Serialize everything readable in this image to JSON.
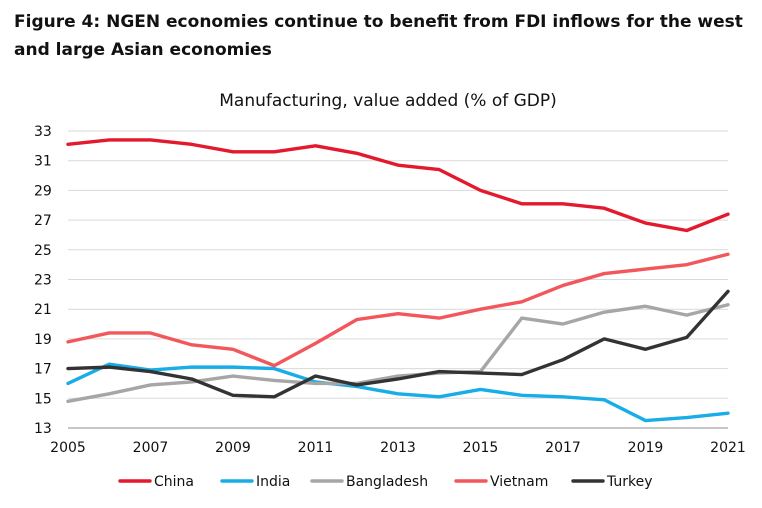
{
  "figure": {
    "title": "Figure 4: NGEN economies continue to benefit from FDI inflows for the west and large Asian economies"
  },
  "chart_data": {
    "type": "line",
    "title": "Manufacturing, value added (% of GDP)",
    "xlabel": "",
    "ylabel": "",
    "x": [
      2005,
      2006,
      2007,
      2008,
      2009,
      2010,
      2011,
      2012,
      2013,
      2014,
      2015,
      2016,
      2017,
      2018,
      2019,
      2020,
      2021
    ],
    "x_ticks": [
      "2005",
      "2007",
      "2009",
      "2011",
      "2013",
      "2015",
      "2017",
      "2019",
      "2021"
    ],
    "y_ticks": [
      "33",
      "31",
      "29",
      "27",
      "25",
      "23",
      "21",
      "19",
      "17",
      "15",
      "13"
    ],
    "ylim": [
      13,
      33
    ],
    "grid": "horizontal",
    "legend_position": "bottom",
    "series": [
      {
        "name": "China",
        "color": "#e3192e",
        "values": [
          32.1,
          32.4,
          32.4,
          32.1,
          31.6,
          31.6,
          32.0,
          31.5,
          30.7,
          30.4,
          29.0,
          28.1,
          28.1,
          27.8,
          26.8,
          26.3,
          27.4
        ]
      },
      {
        "name": "India",
        "color": "#18ade6",
        "values": [
          16.0,
          17.3,
          16.9,
          17.1,
          17.1,
          17.0,
          16.1,
          15.8,
          15.3,
          15.1,
          15.6,
          15.2,
          15.1,
          14.9,
          13.5,
          13.7,
          14.0
        ]
      },
      {
        "name": "Bangladesh",
        "color": "#a6a6a6",
        "values": [
          14.8,
          15.3,
          15.9,
          16.1,
          16.5,
          16.2,
          16.0,
          16.0,
          16.5,
          16.7,
          16.8,
          20.4,
          20.0,
          20.8,
          21.2,
          20.6,
          21.3
        ]
      },
      {
        "name": "Vietnam",
        "color": "#f2575c",
        "values": [
          18.8,
          19.4,
          19.4,
          18.6,
          18.3,
          17.2,
          18.7,
          20.3,
          20.7,
          20.4,
          21.0,
          21.5,
          22.6,
          23.4,
          23.7,
          24.0,
          24.7
        ]
      },
      {
        "name": "Turkey",
        "color": "#333333",
        "values": [
          17.0,
          17.1,
          16.8,
          16.3,
          15.2,
          15.1,
          16.5,
          15.9,
          16.3,
          16.8,
          16.7,
          16.6,
          17.6,
          19.0,
          18.3,
          19.1,
          22.2
        ]
      }
    ]
  }
}
